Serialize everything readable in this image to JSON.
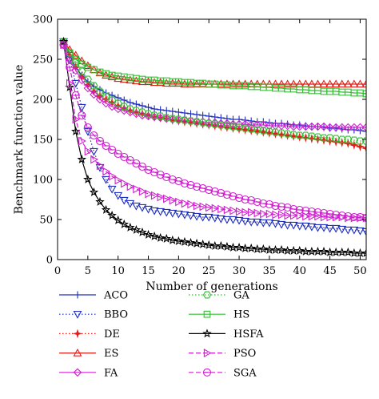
{
  "chart_data": {
    "type": "line",
    "title": "",
    "xlabel": "Number of generations",
    "ylabel": "Benchmark function value",
    "xlim": [
      0,
      51
    ],
    "ylim": [
      0,
      300
    ],
    "xticks": [
      0,
      5,
      10,
      15,
      20,
      25,
      30,
      35,
      40,
      45,
      50
    ],
    "yticks": [
      0,
      50,
      100,
      150,
      200,
      250,
      300
    ],
    "grid": false,
    "legend_placement": "below-plot-two-columns",
    "series": [
      {
        "name": "ACO",
        "color": "#1f2fbf",
        "dash": "solid",
        "marker": "plus",
        "values": [
          272,
          255,
          240,
          230,
          222,
          216,
          212,
          208,
          205,
          202,
          199,
          196,
          194,
          192,
          190,
          188,
          187,
          186,
          185,
          184,
          183,
          182,
          181,
          180,
          179,
          178,
          177,
          176,
          175,
          175,
          174,
          173,
          172,
          172,
          171,
          170,
          170,
          169,
          168,
          168,
          167,
          166,
          166,
          165,
          164,
          164,
          163,
          162,
          162,
          161,
          160
        ]
      },
      {
        "name": "BBO",
        "color": "#1f2fbf",
        "dash": "dotted",
        "marker": "triangle-down",
        "values": [
          272,
          250,
          220,
          190,
          160,
          135,
          115,
          100,
          88,
          80,
          74,
          70,
          67,
          65,
          63,
          61,
          60,
          59,
          58,
          57,
          56,
          55,
          54,
          53,
          53,
          52,
          51,
          50,
          50,
          49,
          48,
          47,
          47,
          46,
          46,
          45,
          44,
          43,
          43,
          42,
          42,
          41,
          40,
          40,
          39,
          39,
          38,
          37,
          37,
          36,
          35
        ]
      },
      {
        "name": "DE",
        "color": "#e0201a",
        "dash": "dotted",
        "marker": "star4",
        "values": [
          272,
          255,
          240,
          228,
          218,
          210,
          204,
          200,
          196,
          192,
          189,
          186,
          184,
          182,
          180,
          178,
          177,
          176,
          174,
          173,
          172,
          171,
          170,
          169,
          168,
          167,
          166,
          165,
          164,
          163,
          162,
          161,
          160,
          159,
          158,
          157,
          156,
          155,
          154,
          153,
          152,
          151,
          150,
          149,
          148,
          147,
          146,
          145,
          143,
          141,
          139
        ]
      },
      {
        "name": "ES",
        "color": "#e0201a",
        "dash": "solid",
        "marker": "triangle-up",
        "values": [
          272,
          262,
          255,
          248,
          242,
          237,
          233,
          230,
          228,
          226,
          225,
          224,
          223,
          222,
          222,
          221,
          221,
          220,
          220,
          220,
          219,
          219,
          219,
          219,
          219,
          219,
          219,
          219,
          219,
          219,
          219,
          219,
          219,
          219,
          219,
          219,
          219,
          219,
          219,
          219,
          219,
          219,
          219,
          219,
          219,
          219,
          219,
          219,
          219,
          219,
          219
        ]
      },
      {
        "name": "FA",
        "color": "#d020d0",
        "dash": "solid",
        "marker": "diamond",
        "values": [
          268,
          250,
          236,
          224,
          214,
          206,
          200,
          195,
          191,
          188,
          186,
          184,
          182,
          180,
          179,
          178,
          177,
          176,
          175,
          174,
          174,
          173,
          172,
          172,
          171,
          171,
          170,
          170,
          169,
          169,
          169,
          168,
          168,
          168,
          167,
          167,
          167,
          167,
          166,
          166,
          166,
          166,
          166,
          166,
          165,
          165,
          165,
          165,
          165,
          165,
          165
        ]
      },
      {
        "name": "GA",
        "color": "#30c030",
        "dash": "dotted",
        "marker": "hexagon",
        "values": [
          272,
          258,
          246,
          235,
          225,
          217,
          210,
          204,
          199,
          195,
          191,
          188,
          186,
          184,
          182,
          180,
          179,
          177,
          176,
          175,
          174,
          173,
          172,
          171,
          170,
          169,
          168,
          167,
          166,
          165,
          164,
          163,
          162,
          161,
          160,
          159,
          158,
          157,
          156,
          155,
          155,
          154,
          153,
          152,
          152,
          151,
          150,
          150,
          149,
          148,
          148
        ]
      },
      {
        "name": "HS",
        "color": "#30c030",
        "dash": "solid",
        "marker": "square",
        "values": [
          272,
          258,
          250,
          244,
          240,
          237,
          234,
          232,
          230,
          229,
          228,
          227,
          226,
          225,
          224,
          224,
          223,
          223,
          222,
          222,
          221,
          221,
          220,
          220,
          219,
          219,
          218,
          218,
          217,
          217,
          217,
          216,
          216,
          215,
          215,
          214,
          214,
          213,
          213,
          212,
          212,
          211,
          211,
          210,
          210,
          210,
          209,
          209,
          208,
          208,
          207
        ]
      },
      {
        "name": "HSFA",
        "color": "#000000",
        "dash": "solid",
        "marker": "star",
        "values": [
          272,
          215,
          160,
          125,
          100,
          84,
          72,
          62,
          55,
          49,
          44,
          40,
          37,
          34,
          31,
          29,
          27,
          26,
          24,
          23,
          22,
          21,
          20,
          19,
          18,
          17,
          17,
          16,
          15,
          15,
          14,
          14,
          13,
          13,
          12,
          12,
          12,
          11,
          11,
          11,
          10,
          10,
          10,
          10,
          9,
          9,
          9,
          9,
          8,
          8,
          8
        ]
      },
      {
        "name": "PSO",
        "color": "#d020d0",
        "dash": "dashed",
        "marker": "triangle-right",
        "values": [
          268,
          220,
          175,
          148,
          135,
          125,
          117,
          110,
          104,
          99,
          95,
          91,
          88,
          85,
          82,
          80,
          78,
          76,
          74,
          72,
          70,
          69,
          67,
          66,
          65,
          64,
          63,
          62,
          61,
          60,
          59,
          59,
          58,
          57,
          57,
          56,
          56,
          55,
          55,
          55,
          54,
          54,
          54,
          53,
          53,
          53,
          53,
          52,
          52,
          52,
          52
        ]
      },
      {
        "name": "SGA",
        "color": "#d020d0",
        "dash": "dashed",
        "marker": "circle-line",
        "values": [
          268,
          240,
          205,
          180,
          165,
          155,
          148,
          142,
          137,
          132,
          128,
          124,
          120,
          116,
          112,
          109,
          106,
          103,
          100,
          98,
          95,
          93,
          91,
          89,
          87,
          85,
          83,
          81,
          79,
          77,
          75,
          74,
          72,
          70,
          69,
          67,
          66,
          65,
          63,
          62,
          61,
          60,
          59,
          58,
          57,
          56,
          55,
          54,
          53,
          53,
          52
        ]
      }
    ]
  }
}
